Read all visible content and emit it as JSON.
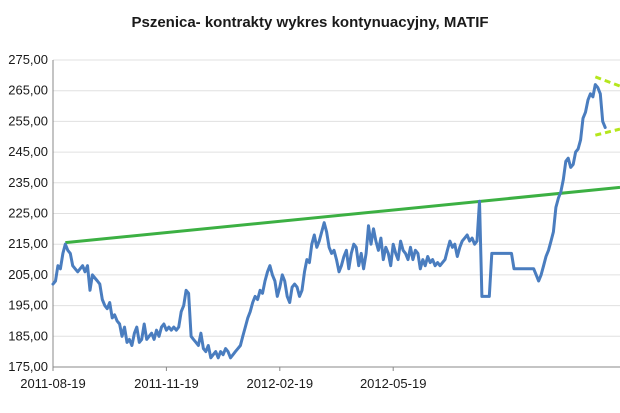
{
  "chart_data": {
    "type": "line",
    "title": "Pszenica- kontrakty wykres kontynuacyjny, MATIF",
    "xlabel": "",
    "ylabel": "",
    "x_tick_labels": [
      "2011-08-19",
      "2011-11-19",
      "2012-02-19",
      "2012-05-19"
    ],
    "y_tick_labels": [
      "175,00",
      "185,00",
      "195,00",
      "205,00",
      "215,00",
      "225,00",
      "235,00",
      "245,00",
      "255,00",
      "265,00",
      "275,00"
    ],
    "ylim": [
      175,
      275
    ],
    "grid": "horizontal",
    "legend": "none",
    "colors": {
      "price": "#4a7dbf",
      "trend_line": "#3cb043",
      "channel_lines": "#b5e61d",
      "grid": "#e0e0e0",
      "axis": "#888888"
    },
    "series": [
      {
        "values": [
          [
            0,
            202
          ],
          [
            2,
            203
          ],
          [
            4,
            208
          ],
          [
            6,
            207
          ],
          [
            8,
            212
          ],
          [
            10,
            215
          ],
          [
            12,
            213
          ],
          [
            14,
            212
          ],
          [
            16,
            208
          ],
          [
            18,
            207
          ],
          [
            20,
            206
          ],
          [
            22,
            207
          ],
          [
            24,
            208
          ],
          [
            26,
            206
          ],
          [
            28,
            208
          ],
          [
            30,
            200
          ],
          [
            32,
            205
          ],
          [
            34,
            204
          ],
          [
            36,
            203
          ],
          [
            38,
            202
          ],
          [
            40,
            197
          ],
          [
            42,
            195
          ],
          [
            44,
            194
          ],
          [
            46,
            196
          ],
          [
            48,
            191
          ],
          [
            50,
            192
          ],
          [
            52,
            190
          ],
          [
            54,
            189
          ],
          [
            56,
            185
          ],
          [
            58,
            188
          ],
          [
            60,
            183
          ],
          [
            62,
            184
          ],
          [
            64,
            182
          ],
          [
            66,
            186
          ],
          [
            68,
            188
          ],
          [
            70,
            183
          ],
          [
            72,
            184
          ],
          [
            74,
            189
          ],
          [
            76,
            184
          ],
          [
            78,
            185
          ],
          [
            80,
            186
          ],
          [
            82,
            184
          ],
          [
            84,
            187
          ],
          [
            86,
            185
          ],
          [
            88,
            188
          ],
          [
            90,
            189
          ],
          [
            92,
            187
          ],
          [
            94,
            188
          ],
          [
            96,
            187
          ],
          [
            98,
            188
          ],
          [
            100,
            187
          ],
          [
            102,
            188
          ],
          [
            104,
            193
          ],
          [
            106,
            195
          ],
          [
            108,
            200
          ],
          [
            110,
            199
          ],
          [
            112,
            185
          ],
          [
            114,
            184
          ],
          [
            116,
            183
          ],
          [
            118,
            182
          ],
          [
            120,
            186
          ],
          [
            122,
            181
          ],
          [
            124,
            180
          ],
          [
            126,
            182
          ],
          [
            128,
            178
          ],
          [
            130,
            179
          ],
          [
            132,
            180
          ],
          [
            134,
            178
          ],
          [
            136,
            180
          ],
          [
            138,
            179
          ],
          [
            140,
            181
          ],
          [
            142,
            180
          ],
          [
            144,
            178
          ],
          [
            146,
            179
          ],
          [
            148,
            180
          ],
          [
            150,
            181
          ],
          [
            152,
            182
          ],
          [
            154,
            185
          ],
          [
            156,
            188
          ],
          [
            158,
            191
          ],
          [
            160,
            193
          ],
          [
            162,
            196
          ],
          [
            164,
            198
          ],
          [
            166,
            197
          ],
          [
            168,
            200
          ],
          [
            170,
            199
          ],
          [
            172,
            203
          ],
          [
            174,
            206
          ],
          [
            176,
            208
          ],
          [
            178,
            205
          ],
          [
            180,
            203
          ],
          [
            182,
            198
          ],
          [
            184,
            201
          ],
          [
            186,
            205
          ],
          [
            188,
            203
          ],
          [
            190,
            198
          ],
          [
            192,
            196
          ],
          [
            194,
            201
          ],
          [
            196,
            202
          ],
          [
            198,
            201
          ],
          [
            200,
            198
          ],
          [
            202,
            200
          ],
          [
            204,
            206
          ],
          [
            206,
            210
          ],
          [
            208,
            209
          ],
          [
            210,
            215
          ],
          [
            212,
            218
          ],
          [
            214,
            214
          ],
          [
            216,
            216
          ],
          [
            218,
            219
          ],
          [
            220,
            222
          ],
          [
            222,
            219
          ],
          [
            224,
            214
          ],
          [
            226,
            212
          ],
          [
            228,
            213
          ],
          [
            230,
            210
          ],
          [
            232,
            206
          ],
          [
            234,
            208
          ],
          [
            236,
            211
          ],
          [
            238,
            213
          ],
          [
            240,
            207
          ],
          [
            242,
            212
          ],
          [
            244,
            215
          ],
          [
            246,
            214
          ],
          [
            248,
            208
          ],
          [
            250,
            212
          ],
          [
            252,
            207
          ],
          [
            254,
            212
          ],
          [
            256,
            221
          ],
          [
            258,
            215
          ],
          [
            260,
            220
          ],
          [
            262,
            216
          ],
          [
            264,
            213
          ],
          [
            266,
            217
          ],
          [
            268,
            210
          ],
          [
            270,
            214
          ],
          [
            272,
            212
          ],
          [
            274,
            208
          ],
          [
            276,
            215
          ],
          [
            278,
            212
          ],
          [
            280,
            210
          ],
          [
            282,
            216
          ],
          [
            284,
            213
          ],
          [
            286,
            212
          ],
          [
            288,
            210
          ],
          [
            290,
            214
          ],
          [
            292,
            210
          ],
          [
            294,
            213
          ],
          [
            296,
            212
          ],
          [
            298,
            207
          ],
          [
            300,
            210
          ],
          [
            302,
            208
          ],
          [
            304,
            211
          ],
          [
            306,
            209
          ],
          [
            308,
            210
          ],
          [
            310,
            208
          ],
          [
            312,
            209
          ],
          [
            314,
            208
          ],
          [
            316,
            209
          ],
          [
            318,
            210
          ],
          [
            320,
            213
          ],
          [
            322,
            216
          ],
          [
            324,
            214
          ],
          [
            326,
            215
          ],
          [
            328,
            211
          ],
          [
            330,
            214
          ],
          [
            332,
            216
          ],
          [
            334,
            217
          ],
          [
            336,
            218
          ],
          [
            338,
            216
          ],
          [
            340,
            217
          ],
          [
            342,
            215
          ],
          [
            344,
            216
          ],
          [
            346,
            229
          ],
          [
            348,
            198
          ],
          [
            350,
            198
          ],
          [
            352,
            198
          ],
          [
            354,
            198
          ],
          [
            356,
            212
          ],
          [
            358,
            212
          ],
          [
            360,
            212
          ],
          [
            362,
            212
          ],
          [
            364,
            212
          ],
          [
            366,
            212
          ],
          [
            368,
            212
          ],
          [
            370,
            212
          ],
          [
            372,
            212
          ],
          [
            374,
            207
          ],
          [
            376,
            207
          ],
          [
            378,
            207
          ],
          [
            380,
            207
          ],
          [
            382,
            207
          ],
          [
            384,
            207
          ],
          [
            386,
            207
          ],
          [
            388,
            207
          ],
          [
            390,
            207
          ],
          [
            392,
            205
          ],
          [
            394,
            203
          ],
          [
            396,
            205
          ],
          [
            398,
            208
          ],
          [
            400,
            211
          ],
          [
            402,
            213
          ],
          [
            404,
            216
          ],
          [
            406,
            219
          ],
          [
            408,
            227
          ],
          [
            410,
            230
          ],
          [
            412,
            232
          ],
          [
            414,
            236
          ],
          [
            416,
            242
          ],
          [
            418,
            243
          ],
          [
            420,
            240
          ],
          [
            422,
            241
          ],
          [
            424,
            245
          ],
          [
            426,
            246
          ],
          [
            428,
            249
          ],
          [
            430,
            256
          ],
          [
            432,
            258
          ],
          [
            434,
            262
          ],
          [
            436,
            264
          ],
          [
            438,
            263
          ],
          [
            440,
            267
          ],
          [
            442,
            266
          ],
          [
            444,
            264
          ],
          [
            446,
            255
          ],
          [
            448,
            253
          ]
        ]
      }
    ],
    "trend_line": {
      "from": [
        10,
        215.5
      ],
      "to": [
        460,
        233.5
      ]
    },
    "channel_lines": [
      {
        "from": [
          440,
          269.5
        ],
        "to": [
          460,
          266.5
        ]
      },
      {
        "from": [
          440,
          250.5
        ],
        "to": [
          460,
          252.5
        ]
      }
    ]
  }
}
